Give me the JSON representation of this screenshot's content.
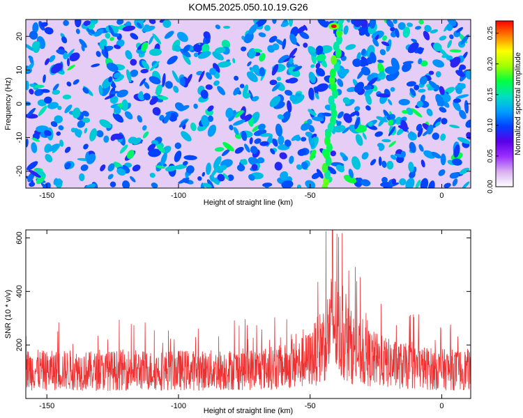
{
  "title": "KOM5.2025.050.10.19.G26",
  "colors": {
    "snr_line": "#ee3030",
    "axis": "#000000",
    "background": "#ffffff"
  },
  "chart_data": [
    {
      "type": "heatmap",
      "xlabel": "Height of straight line (km)",
      "ylabel": "Frequency (Hz)",
      "xlim": [
        -158,
        11
      ],
      "ylim": [
        -25,
        25
      ],
      "x_ticks": [
        -150,
        -100,
        -50,
        0
      ],
      "y_ticks": [
        -20,
        -10,
        0,
        10,
        20
      ],
      "colorbar": {
        "label": "Normalized spectral amplitude",
        "range": [
          0,
          0.27
        ],
        "ticks": [
          "0.00",
          "0.05",
          "0.10",
          "0.15",
          "0.20",
          "0.25"
        ],
        "colormap": [
          "#ffffff",
          "#d8b0f0",
          "#9b30ff",
          "#5a00e8",
          "#0040ff",
          "#00a0ff",
          "#00e0c0",
          "#00ff40",
          "#a0ff00",
          "#ffff00",
          "#ff8000",
          "#ff0000"
        ]
      },
      "features": {
        "bright_trace_x_km": [
          -44,
          -39
        ],
        "peak": {
          "x": -41,
          "y": 23,
          "value": 0.27
        }
      }
    },
    {
      "type": "line",
      "xlabel": "Height of straight line (km)",
      "ylabel": "SNR (10 * v/v)",
      "xlim": [
        -158,
        11
      ],
      "ylim": [
        0,
        630
      ],
      "x_ticks": [
        -150,
        -100,
        -50,
        0
      ],
      "y_ticks": [
        200,
        400,
        600
      ],
      "series": [
        {
          "color": "#ee3030",
          "x": [
            -157,
            -150,
            -140,
            -130,
            -120,
            -110,
            -100,
            -90,
            -80,
            -70,
            -60,
            -55,
            -50,
            -47,
            -45,
            -43,
            -42,
            -41,
            -40,
            -38,
            -35,
            -32,
            -30,
            -25,
            -20,
            -15,
            -10,
            -5,
            0,
            5,
            11
          ],
          "values": [
            120,
            115,
            118,
            112,
            120,
            115,
            118,
            116,
            120,
            122,
            130,
            140,
            165,
            200,
            230,
            270,
            300,
            320,
            290,
            250,
            220,
            190,
            175,
            160,
            145,
            135,
            130,
            125,
            120,
            118,
            120
          ]
        }
      ]
    }
  ]
}
